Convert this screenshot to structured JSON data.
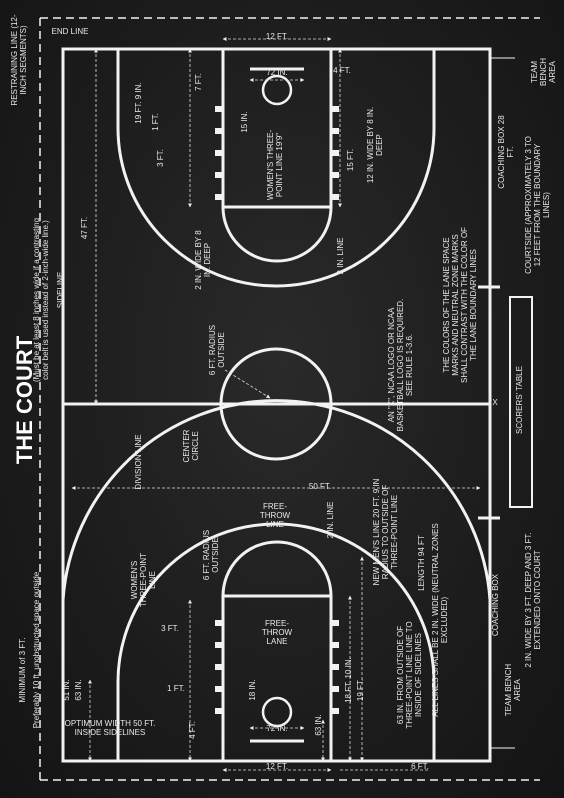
{
  "title": "THE COURT",
  "labels": {
    "end_line": "END LINE",
    "restraining_line": "RESTRAINING LINE (12-INCH SEGMENTS)",
    "team_bench_top": "TEAM BENCH AREA",
    "twelve_ft_top": "12 FT.",
    "seventy_two_in_top": "72 IN.",
    "four_ft_top": "4 FT.",
    "seven_ft": "7 FT.",
    "nineteen_ft_nine": "19 FT. 9 IN.",
    "one_ft_top": "1 FT.",
    "three_ft_top": "3 FT.",
    "fifteen_in_top": "15 IN.",
    "womens_three_point_top": "WOMEN'S THREE-POINT LINE 19'9\"",
    "twelve_in_wide": "12 IN. WIDE BY 8 IN. DEEP",
    "fifteen_ft": "15 FT.",
    "coaching_box_top": "COACHING BOX 28 FT.",
    "courtside": "COURTSIDE (APPROXIMATELY 3 TO 12 FEET FROM THE BOUNDARY LINES)",
    "forty_seven_ft": "47 FT.",
    "two_ft_wide": "2 IN. WIDE BY 8 IN. DEEP",
    "two_in_line_top": "2 IN. LINE",
    "lane_colors_note": "THE COLORS OF THE LANE SPACE MARKS AND NEUTRAL ZONE MARKS SHALL CONTRAST WITH THE COLOR OF THE LANE BOUNDARY LINES",
    "sideline": "SIDELINE",
    "sideline_note": "(Must be at least 8 inches wide if a contrasting color belt is used instead of 2-inch-wide line.)",
    "six_ft_radius_top": "6 FT. RADIUS OUTSIDE",
    "ncaa_logo": "AN \"X\", NCAA LOGO OR NCAA BASKETBALL LOGO IS REQUIRED. SEE RULE 1-3.6.",
    "x_mark": "X",
    "scorers_table": "SCORERS' TABLE",
    "division_line": "DIVISION LINE",
    "center_circle": "CENTER CIRCLE",
    "fifty_ft": "50 FT.",
    "length_note": "LENGTH 94 FT",
    "all_lines_note": "ALL LINES SHALL BE 2 IN. WIDE (NEUTRAL ZONES EXCLUDED)",
    "free_throw_line": "FREE-THROW LINE",
    "two_in_line_bottom": "2 IN. LINE",
    "new_mens_line": "NEW MEN'S LINE 20 FT. 9 IN RADIUS TO OUTSIDE OF THREE-POINT LINE",
    "womens_three_point_bottom": "WOMEN'S THREE-POINT LINE",
    "six_ft_radius_bottom": "6 FT. RADIUS OUTSIDE",
    "free_throw_lane": "FREE-THROW LANE",
    "minimum_3ft": "MINIMUM of 3 FT.",
    "preferably": "Preferably 10 ft. unobstructed space outside",
    "three_ft_bottom": "3 FT.",
    "one_ft_bottom": "1 FT.",
    "eighteen_in": "18 IN.",
    "eighteen_ft_ten": "18 FT. 10 IN.",
    "nineteen_ft_bottom": "19 FT.",
    "sixty_three_in_note": "63 IN. FROM OUTSIDE OF THREE-POINT LINE LINE TO INSIDE OF SIDELINES",
    "fifty_one_in": "51 IN.",
    "sixty_three_in_left": "63 IN.",
    "optimum_width": "OPTIMUM WIDTH 50 FT. INSIDE SIDELINES",
    "four_ft_bottom": "4 FT.",
    "seventy_two_in_bottom": "72 IN.",
    "sixty_three_in_bottom": "63 IN.",
    "twelve_ft_bottom": "12 FT.",
    "six_ft_bottom": "6 FT.",
    "coaching_box_bottom": "COACHING BOX",
    "team_bench_bottom": "TEAM BENCH AREA",
    "bench_extension": "2 IN. WIDE BY 3 FT. DEEP AND 3 FT. EXTENDED ONTO COURT"
  }
}
